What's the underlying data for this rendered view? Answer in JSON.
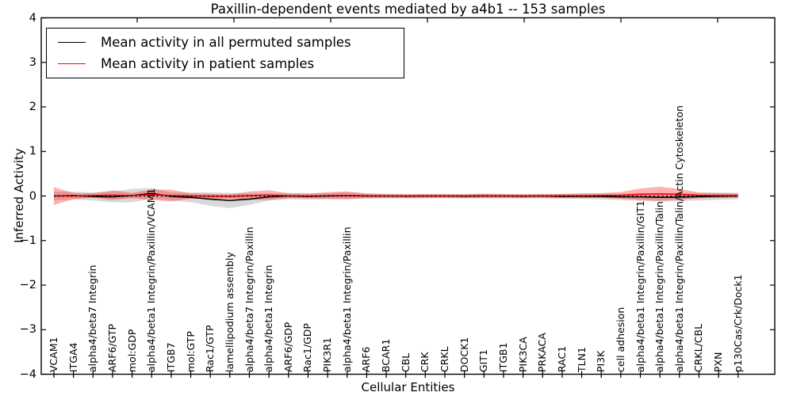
{
  "chart_data": {
    "type": "line",
    "title": "Paxillin-dependent events mediated by a4b1 -- 153 samples",
    "xlabel": "Cellular Entities",
    "ylabel": "Inferred Activity",
    "ylim": [
      -4,
      4
    ],
    "yticks": [
      "4",
      "3",
      "2",
      "1",
      "0",
      "−1",
      "−2",
      "−3",
      "−4"
    ],
    "grid": false,
    "legend_position": "upper left",
    "zero_reference_line": {
      "y": 0,
      "style": "dotted",
      "color": "#000000"
    },
    "categories": [
      "VCAM1",
      "ITGA4",
      "alpha4/beta7 Integrin",
      "ARF6/GTP",
      "mol:GDP",
      "alpha4/beta1 Integrin/Paxillin/VCAM1",
      "ITGB7",
      "mol:GTP",
      "Rac1/GTP",
      "lamellipodium assembly",
      "alpha4/beta7 Integrin/Paxillin",
      "alpha4/beta1 Integrin",
      "ARF6/GDP",
      "Rac1/GDP",
      "PIK3R1",
      "alpha4/beta1 Integrin/Paxillin",
      "ARF6",
      "BCAR1",
      "CBL",
      "CRK",
      "CRKL",
      "DOCK1",
      "GIT1",
      "ITGB1",
      "PIK3CA",
      "PRKACA",
      "RAC1",
      "TLN1",
      "PI3K",
      "cell adhesion",
      "alpha4/beta1 Integrin/Paxillin/GIT1",
      "alpha4/beta1 Integrin/Paxillin/Talin",
      "alpha4/beta1 Integrin/Paxillin/Talin/Actin Cytoskeleton",
      "CRKL/CBL",
      "PXN",
      "p130Cas/Crk/Dock1"
    ],
    "series": [
      {
        "name": "Mean activity in all permuted samples",
        "color": "#000000",
        "band_color": "rgba(130,130,130,0.30)",
        "values": [
          0.0,
          0.01,
          -0.01,
          -0.02,
          0.01,
          0.06,
          -0.01,
          -0.03,
          -0.07,
          -0.1,
          -0.07,
          -0.02,
          0.0,
          -0.01,
          0.0,
          0.01,
          0.0,
          0.0,
          -0.005,
          0.0,
          0.0,
          -0.005,
          0.0,
          0.0,
          -0.005,
          0.0,
          -0.01,
          -0.005,
          -0.01,
          -0.02,
          -0.02,
          -0.03,
          -0.025,
          -0.015,
          -0.005,
          0.0
        ],
        "band_halfwidth": [
          0.1,
          0.085,
          0.09,
          0.12,
          0.15,
          0.12,
          0.09,
          0.11,
          0.15,
          0.17,
          0.13,
          0.08,
          0.07,
          0.075,
          0.07,
          0.075,
          0.06,
          0.055,
          0.05,
          0.05,
          0.05,
          0.05,
          0.055,
          0.05,
          0.05,
          0.05,
          0.055,
          0.06,
          0.065,
          0.075,
          0.085,
          0.09,
          0.09,
          0.085,
          0.08,
          0.07
        ]
      },
      {
        "name": "Mean activity in patient samples",
        "color": "#ff0000",
        "band_color": "rgba(255,0,0,0.30)",
        "values": [
          0.0,
          0.0,
          0.01,
          0.02,
          0.01,
          0.03,
          0.01,
          0.0,
          -0.005,
          -0.01,
          0.01,
          0.02,
          0.005,
          0.0,
          0.01,
          0.015,
          0.005,
          0.0,
          0.0,
          0.0,
          0.0,
          0.0,
          0.005,
          0.0,
          0.0,
          0.0,
          0.005,
          0.005,
          0.01,
          0.015,
          0.04,
          0.05,
          0.04,
          0.015,
          0.01,
          0.01
        ],
        "band_halfwidth": [
          0.2,
          0.07,
          0.05,
          0.11,
          0.06,
          0.12,
          0.13,
          0.06,
          0.055,
          0.05,
          0.09,
          0.11,
          0.055,
          0.05,
          0.075,
          0.09,
          0.05,
          0.04,
          0.04,
          0.04,
          0.04,
          0.04,
          0.045,
          0.04,
          0.04,
          0.04,
          0.045,
          0.05,
          0.055,
          0.075,
          0.13,
          0.16,
          0.12,
          0.065,
          0.055,
          0.05
        ]
      }
    ]
  }
}
